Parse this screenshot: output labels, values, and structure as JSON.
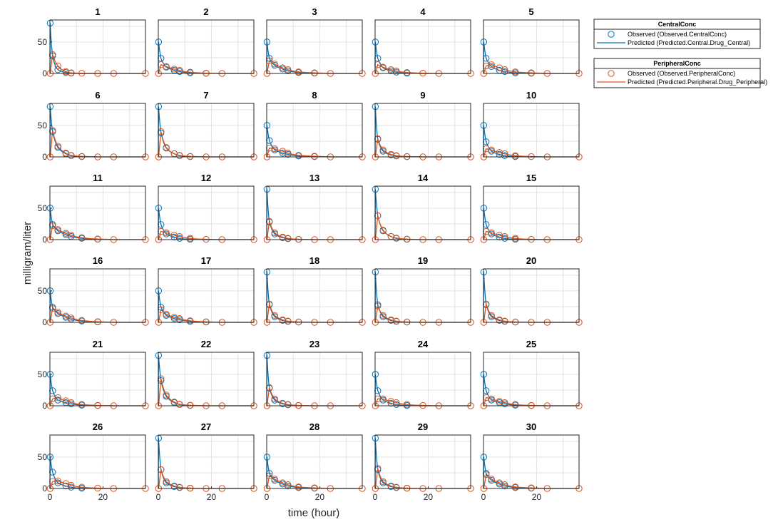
{
  "chart_data": {
    "type": "line",
    "layout": "small-multiples",
    "xlabel": "time (hour)",
    "ylabel": "milligram/liter",
    "xlim": [
      0,
      36
    ],
    "ylim": [
      0,
      85
    ],
    "xticks": [
      0,
      20
    ],
    "yticks": [
      0,
      50
    ],
    "grid": true,
    "colors": {
      "central": "#0072BD",
      "peripheral": "#D95319",
      "overlap": "#6a6a6a"
    },
    "sample_times": [
      0.1,
      1,
      3,
      6,
      8,
      12,
      18,
      24,
      36
    ],
    "legends": [
      {
        "title": "CentralConc",
        "entries": [
          {
            "label": "Observed (Observed.CentralConc)",
            "marker": "circle",
            "color": "#0072BD"
          },
          {
            "label": "Predicted (Predicted.Central.Drug_Central)",
            "marker": "line",
            "color": "#0072BD"
          }
        ]
      },
      {
        "title": "PeripheralConc",
        "entries": [
          {
            "label": "Observed (Observed.PeripheralConc)",
            "marker": "circle",
            "color": "#D95319"
          },
          {
            "label": "Predicted (Predicted.Peripheral.Drug_Peripheral)",
            "marker": "line",
            "color": "#D95319"
          }
        ]
      }
    ],
    "panels": [
      {
        "title": "1",
        "central": [
          80,
          28,
          6,
          1.5,
          0.5,
          0,
          0,
          0,
          0
        ],
        "peripheral": [
          0,
          30,
          12,
          3,
          1,
          0.3,
          0,
          0,
          0
        ]
      },
      {
        "title": "2",
        "central": [
          50,
          24,
          10,
          5,
          3,
          1,
          0.3,
          0,
          0
        ],
        "peripheral": [
          0,
          14,
          11,
          7,
          5,
          2,
          0.5,
          0,
          0
        ]
      },
      {
        "title": "3",
        "central": [
          50,
          24,
          13,
          7,
          4,
          1.5,
          0.5,
          0,
          0
        ],
        "peripheral": [
          0,
          20,
          15,
          9,
          6,
          2.5,
          1,
          0,
          0
        ]
      },
      {
        "title": "4",
        "central": [
          50,
          24,
          9,
          4,
          2,
          0.5,
          0,
          0,
          0
        ],
        "peripheral": [
          0,
          14,
          10,
          6,
          4,
          1.5,
          0.5,
          0,
          0
        ]
      },
      {
        "title": "5",
        "central": [
          50,
          24,
          11,
          5,
          3,
          1,
          0.3,
          0,
          0
        ],
        "peripheral": [
          0,
          12,
          14,
          9,
          6,
          2.5,
          1,
          0,
          0
        ]
      },
      {
        "title": "6",
        "central": [
          80,
          40,
          15,
          5,
          2,
          0.5,
          0,
          0,
          0
        ],
        "peripheral": [
          0,
          42,
          17,
          6,
          2.5,
          0.8,
          0,
          0,
          0
        ]
      },
      {
        "title": "7",
        "central": [
          80,
          38,
          14,
          5,
          2,
          0.5,
          0,
          0,
          0
        ],
        "peripheral": [
          0,
          40,
          15,
          5,
          2.5,
          0.8,
          0,
          0,
          0
        ]
      },
      {
        "title": "8",
        "central": [
          50,
          26,
          11,
          6,
          4,
          1.5,
          0.5,
          0,
          0
        ],
        "peripheral": [
          0,
          14,
          13,
          9,
          6,
          2.5,
          1,
          0,
          0
        ]
      },
      {
        "title": "9",
        "central": [
          80,
          28,
          9,
          3,
          1.5,
          0.5,
          0,
          0,
          0
        ],
        "peripheral": [
          0,
          29,
          11,
          4,
          2,
          0.5,
          0,
          0,
          0
        ]
      },
      {
        "title": "10",
        "central": [
          50,
          24,
          9,
          4,
          2,
          0.5,
          0,
          0,
          0
        ],
        "peripheral": [
          0,
          13,
          11,
          7,
          5,
          2,
          0.5,
          0,
          0
        ]
      },
      {
        "title": "11",
        "central": [
          50,
          24,
          14,
          8,
          5,
          2,
          0.6,
          0,
          0
        ],
        "peripheral": [
          0,
          22,
          16,
          10,
          7,
          3,
          1,
          0,
          0
        ]
      },
      {
        "title": "12",
        "central": [
          50,
          24,
          9,
          4,
          2,
          0.5,
          0,
          0,
          0
        ],
        "peripheral": [
          0,
          13,
          11,
          7,
          5,
          2,
          0.5,
          0,
          0
        ]
      },
      {
        "title": "13",
        "central": [
          80,
          28,
          9,
          3,
          1.5,
          0.5,
          0,
          0,
          0
        ],
        "peripheral": [
          0,
          29,
          11,
          4,
          2,
          0.5,
          0,
          0,
          0
        ]
      },
      {
        "title": "14",
        "central": [
          80,
          38,
          14,
          5,
          2,
          0.5,
          0,
          0,
          0
        ],
        "peripheral": [
          0,
          38,
          15,
          5,
          2.5,
          0.8,
          0,
          0,
          0
        ]
      },
      {
        "title": "15",
        "central": [
          50,
          24,
          9,
          4,
          2,
          0.5,
          0,
          0,
          0
        ],
        "peripheral": [
          0,
          13,
          11,
          7,
          5,
          2,
          0.5,
          0,
          0
        ]
      },
      {
        "title": "16",
        "central": [
          50,
          24,
          14,
          8,
          5,
          2,
          0.6,
          0,
          0
        ],
        "peripheral": [
          0,
          22,
          16,
          10,
          7,
          3,
          1,
          0,
          0
        ]
      },
      {
        "title": "17",
        "central": [
          50,
          24,
          11,
          6,
          4,
          1.5,
          0.5,
          0,
          0
        ],
        "peripheral": [
          0,
          20,
          13,
          8,
          6,
          2.5,
          0.8,
          0,
          0
        ]
      },
      {
        "title": "18",
        "central": [
          80,
          28,
          9,
          3,
          1.5,
          0.5,
          0,
          0,
          0
        ],
        "peripheral": [
          0,
          29,
          11,
          4,
          2,
          0.5,
          0,
          0,
          0
        ]
      },
      {
        "title": "19",
        "central": [
          80,
          28,
          9,
          3,
          1.5,
          0.5,
          0,
          0,
          0
        ],
        "peripheral": [
          0,
          26,
          11,
          4,
          2,
          0.5,
          0,
          0,
          0
        ]
      },
      {
        "title": "20",
        "central": [
          80,
          28,
          9,
          3,
          1.5,
          0.5,
          0,
          0,
          0
        ],
        "peripheral": [
          0,
          29,
          11,
          4,
          2,
          0.5,
          0,
          0,
          0
        ]
      },
      {
        "title": "21",
        "central": [
          50,
          24,
          9,
          5,
          3,
          1,
          0.3,
          0,
          0
        ],
        "peripheral": [
          0,
          11,
          13,
          8,
          5,
          2,
          0.6,
          0,
          0
        ]
      },
      {
        "title": "22",
        "central": [
          80,
          40,
          15,
          5,
          2,
          0.5,
          0,
          0,
          0
        ],
        "peripheral": [
          0,
          43,
          17,
          6,
          2.5,
          0.8,
          0,
          0,
          0
        ]
      },
      {
        "title": "23",
        "central": [
          80,
          28,
          9,
          3,
          1.5,
          0.5,
          0,
          0,
          0
        ],
        "peripheral": [
          0,
          29,
          11,
          4,
          2,
          0.5,
          0,
          0,
          0
        ]
      },
      {
        "title": "24",
        "central": [
          50,
          24,
          9,
          4,
          2,
          0.5,
          0,
          0,
          0
        ],
        "peripheral": [
          0,
          11,
          11,
          7,
          5,
          2,
          0.5,
          0,
          0
        ]
      },
      {
        "title": "25",
        "central": [
          50,
          24,
          9,
          5,
          3,
          1,
          0.3,
          0,
          0
        ],
        "peripheral": [
          0,
          13,
          11,
          7,
          5,
          2,
          0.5,
          0,
          0
        ]
      },
      {
        "title": "26",
        "central": [
          50,
          26,
          9,
          4,
          2,
          0.5,
          0,
          0,
          0
        ],
        "peripheral": [
          0,
          11,
          12,
          8,
          5,
          2,
          0.6,
          0,
          0
        ]
      },
      {
        "title": "27",
        "central": [
          80,
          30,
          9,
          3,
          1.5,
          0.5,
          0,
          0,
          0
        ],
        "peripheral": [
          0,
          30,
          11,
          4,
          2,
          0.5,
          0,
          0,
          0
        ]
      },
      {
        "title": "28",
        "central": [
          50,
          24,
          13,
          7,
          4,
          1.5,
          0.5,
          0,
          0
        ],
        "peripheral": [
          0,
          20,
          15,
          9,
          6,
          2.5,
          1,
          0,
          0
        ]
      },
      {
        "title": "29",
        "central": [
          80,
          30,
          9,
          3,
          1.5,
          0.5,
          0,
          0,
          0
        ],
        "peripheral": [
          0,
          32,
          11,
          4,
          2,
          0.5,
          0,
          0,
          0
        ]
      },
      {
        "title": "30",
        "central": [
          50,
          24,
          13,
          7,
          4,
          1.5,
          0.5,
          0,
          0
        ],
        "peripheral": [
          0,
          22,
          15,
          9,
          6,
          2.5,
          1,
          0,
          0
        ]
      }
    ]
  }
}
